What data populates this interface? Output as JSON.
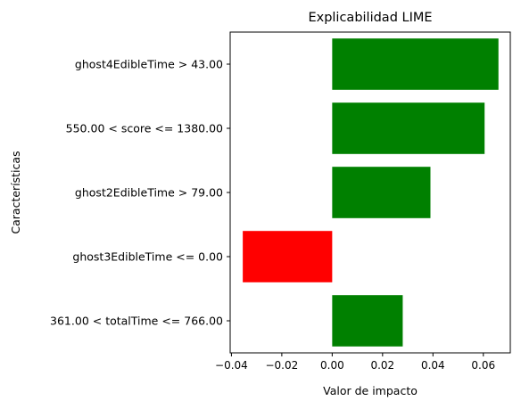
{
  "chart_data": {
    "type": "bar",
    "orientation": "horizontal",
    "title": "Explicabilidad LIME",
    "xlabel": "Valor de impacto",
    "ylabel": "Características",
    "categories": [
      "ghost4EdibleTime > 43.00",
      "550.00 < score <= 1380.00",
      "ghost2EdibleTime > 79.00",
      "ghost3EdibleTime <= 0.00",
      "361.00 < totalTime <= 766.00"
    ],
    "values": [
      0.066,
      0.0605,
      0.039,
      -0.0355,
      0.028
    ],
    "colors": [
      "#008000",
      "#008000",
      "#008000",
      "#ff0000",
      "#008000"
    ],
    "xlim": [
      -0.0405,
      0.0707
    ],
    "xticks": [
      -0.04,
      -0.02,
      0.0,
      0.02,
      0.04,
      0.06
    ],
    "xtick_labels": [
      "−0.04",
      "−0.02",
      "0.00",
      "0.02",
      "0.04",
      "0.06"
    ],
    "grid": false,
    "legend": "none"
  }
}
